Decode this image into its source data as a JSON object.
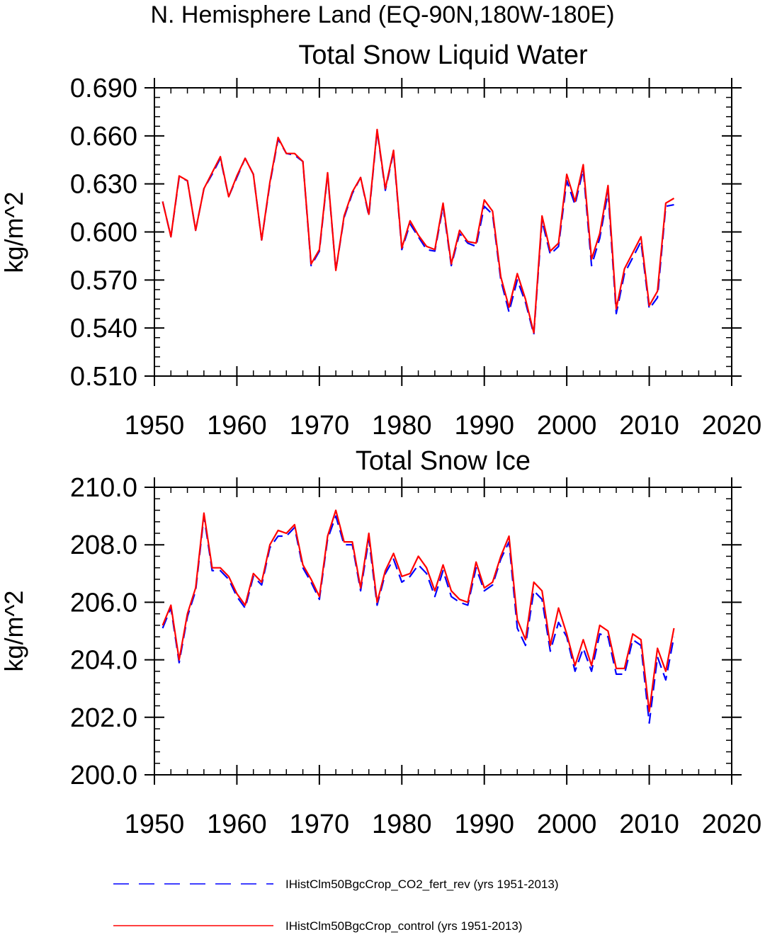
{
  "figure": {
    "main_title": "N. Hemisphere Land (EQ-90N,180W-180E)"
  },
  "chart_data": [
    {
      "type": "line",
      "title": "Total Snow Liquid Water",
      "ylabel": "kg/m^2",
      "xlabel": "",
      "xlim": [
        1950,
        2020
      ],
      "ylim": [
        0.51,
        0.69
      ],
      "xticks": [
        1950,
        1960,
        1970,
        1980,
        1990,
        2000,
        2010,
        2020
      ],
      "yticks": [
        0.51,
        0.54,
        0.57,
        0.6,
        0.63,
        0.66,
        0.69
      ],
      "ytick_labels": [
        "0.510",
        "0.540",
        "0.570",
        "0.600",
        "0.630",
        "0.660",
        "0.690"
      ],
      "x": [
        1951,
        1952,
        1953,
        1954,
        1955,
        1956,
        1957,
        1958,
        1959,
        1960,
        1961,
        1962,
        1963,
        1964,
        1965,
        1966,
        1967,
        1968,
        1969,
        1970,
        1971,
        1972,
        1973,
        1974,
        1975,
        1976,
        1977,
        1978,
        1979,
        1980,
        1981,
        1982,
        1983,
        1984,
        1985,
        1986,
        1987,
        1988,
        1989,
        1990,
        1991,
        1992,
        1993,
        1994,
        1995,
        1996,
        1997,
        1998,
        1999,
        2000,
        2001,
        2002,
        2003,
        2004,
        2005,
        2006,
        2007,
        2008,
        2009,
        2010,
        2011,
        2012,
        2013
      ],
      "series": [
        {
          "name": "IHistClm50BgcCrop_CO2_fert_rev (yrs 1951-2013)",
          "color": "#0000ff",
          "dash": "dashed",
          "values": [
            0.619,
            0.597,
            0.634,
            0.632,
            0.601,
            0.627,
            0.636,
            0.646,
            0.622,
            0.634,
            0.646,
            0.636,
            0.595,
            0.63,
            0.658,
            0.649,
            0.648,
            0.644,
            0.579,
            0.588,
            0.636,
            0.576,
            0.609,
            0.624,
            0.634,
            0.61,
            0.663,
            0.626,
            0.65,
            0.589,
            0.605,
            0.597,
            0.589,
            0.588,
            0.616,
            0.579,
            0.599,
            0.593,
            0.591,
            0.616,
            0.611,
            0.57,
            0.55,
            0.57,
            0.556,
            0.536,
            0.607,
            0.586,
            0.591,
            0.632,
            0.617,
            0.639,
            0.579,
            0.596,
            0.625,
            0.549,
            0.574,
            0.584,
            0.594,
            0.552,
            0.559,
            0.616,
            0.617
          ]
        },
        {
          "name": "IHistClm50BgcCrop_control (yrs 1951-2013)",
          "color": "#ff0000",
          "dash": "solid",
          "values": [
            0.619,
            0.597,
            0.635,
            0.632,
            0.601,
            0.627,
            0.637,
            0.647,
            0.622,
            0.635,
            0.646,
            0.636,
            0.595,
            0.631,
            0.659,
            0.649,
            0.649,
            0.644,
            0.58,
            0.589,
            0.637,
            0.576,
            0.61,
            0.625,
            0.634,
            0.611,
            0.664,
            0.627,
            0.651,
            0.59,
            0.607,
            0.598,
            0.591,
            0.589,
            0.618,
            0.58,
            0.601,
            0.594,
            0.593,
            0.62,
            0.613,
            0.572,
            0.553,
            0.574,
            0.558,
            0.537,
            0.61,
            0.588,
            0.593,
            0.636,
            0.619,
            0.642,
            0.583,
            0.599,
            0.629,
            0.552,
            0.577,
            0.587,
            0.597,
            0.554,
            0.563,
            0.618,
            0.621
          ]
        }
      ]
    },
    {
      "type": "line",
      "title": "Total Snow Ice",
      "ylabel": "kg/m^2",
      "xlabel": "",
      "xlim": [
        1950,
        2020
      ],
      "ylim": [
        200.0,
        210.0
      ],
      "xticks": [
        1950,
        1960,
        1970,
        1980,
        1990,
        2000,
        2010,
        2020
      ],
      "yticks": [
        200.0,
        202.0,
        204.0,
        206.0,
        208.0,
        210.0
      ],
      "ytick_labels": [
        "200.0",
        "202.0",
        "204.0",
        "206.0",
        "208.0",
        "210.0"
      ],
      "x": [
        1951,
        1952,
        1953,
        1954,
        1955,
        1956,
        1957,
        1958,
        1959,
        1960,
        1961,
        1962,
        1963,
        1964,
        1965,
        1966,
        1967,
        1968,
        1969,
        1970,
        1971,
        1972,
        1973,
        1974,
        1975,
        1976,
        1977,
        1978,
        1979,
        1980,
        1981,
        1982,
        1983,
        1984,
        1985,
        1986,
        1987,
        1988,
        1989,
        1990,
        1991,
        1992,
        1993,
        1994,
        1995,
        1996,
        1997,
        1998,
        1999,
        2000,
        2001,
        2002,
        2003,
        2004,
        2005,
        2006,
        2007,
        2008,
        2009,
        2010,
        2011,
        2012,
        2013
      ],
      "series": [
        {
          "name": "IHistClm50BgcCrop_CO2_fert_rev (yrs 1951-2013)",
          "color": "#0000ff",
          "dash": "dashed",
          "values": [
            205.1,
            205.8,
            203.9,
            205.5,
            206.4,
            209.0,
            207.1,
            207.1,
            206.8,
            206.2,
            205.8,
            206.9,
            206.6,
            207.9,
            208.3,
            208.3,
            208.6,
            207.2,
            206.7,
            206.1,
            208.2,
            209.0,
            208.0,
            208.0,
            206.4,
            208.2,
            205.9,
            207.0,
            207.5,
            206.7,
            206.9,
            207.3,
            207.0,
            206.2,
            207.1,
            206.2,
            206.0,
            205.9,
            207.2,
            206.4,
            206.6,
            207.5,
            208.1,
            205.1,
            204.5,
            206.4,
            206.1,
            204.3,
            205.3,
            204.8,
            203.6,
            204.4,
            203.6,
            204.9,
            204.8,
            203.5,
            203.5,
            204.7,
            204.5,
            201.8,
            204.1,
            203.3,
            204.8
          ]
        },
        {
          "name": "IHistClm50BgcCrop_control (yrs 1951-2013)",
          "color": "#ff0000",
          "dash": "solid",
          "values": [
            205.2,
            205.9,
            204.0,
            205.6,
            206.5,
            209.1,
            207.2,
            207.2,
            206.9,
            206.3,
            205.9,
            207.0,
            206.7,
            208.0,
            208.5,
            208.4,
            208.7,
            207.3,
            206.8,
            206.2,
            208.3,
            209.2,
            208.1,
            208.1,
            206.5,
            208.4,
            206.0,
            207.1,
            207.7,
            206.9,
            207.0,
            207.6,
            207.2,
            206.4,
            207.3,
            206.4,
            206.1,
            206.0,
            207.4,
            206.5,
            206.7,
            207.6,
            208.3,
            205.4,
            204.7,
            206.7,
            206.4,
            204.5,
            205.8,
            204.9,
            203.8,
            204.7,
            203.8,
            205.2,
            205.0,
            203.7,
            203.7,
            204.9,
            204.7,
            202.2,
            204.4,
            203.6,
            205.1
          ]
        }
      ]
    }
  ],
  "legend": [
    {
      "label": "IHistClm50BgcCrop_CO2_fert_rev (yrs 1951-2013)",
      "color": "#0000ff",
      "dash": "dashed"
    },
    {
      "label": "IHistClm50BgcCrop_control (yrs 1951-2013)",
      "color": "#ff0000",
      "dash": "solid"
    }
  ]
}
